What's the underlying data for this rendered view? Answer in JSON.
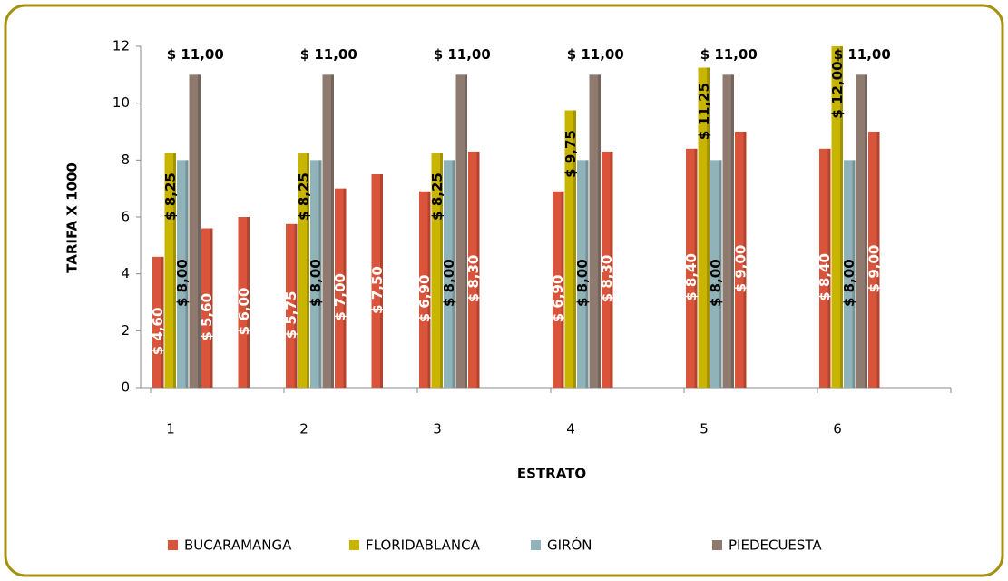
{
  "chart_data": {
    "type": "bar",
    "xlabel": "ESTRATO",
    "ylabel": "TARIFA X 1000",
    "categories": [
      "1",
      "2",
      "3",
      "4",
      "5",
      "6"
    ],
    "ylim": [
      0,
      12
    ],
    "yticks": [
      0,
      2,
      4,
      6,
      8,
      10,
      12
    ],
    "legend": "bottom",
    "series": [
      {
        "name": "BUCARAMANGA",
        "color": "#d9543a",
        "values": [
          4.6,
          5.75,
          6.9,
          6.9,
          8.4,
          8.4
        ],
        "value_labels": [
          "$ 4,60",
          "$ 5,75",
          "$ 6,90",
          "$ 6,90",
          "$ 8,40",
          "$ 8,40"
        ]
      },
      {
        "name": "FLORIDABLANCA",
        "color": "#c9b400",
        "values": [
          8.25,
          8.25,
          8.25,
          9.75,
          11.25,
          12.0
        ],
        "value_labels": [
          "$ 8,25",
          "$ 8,25",
          "$ 8,25",
          "$ 9,75",
          "$ 11,25",
          "$ 12,00"
        ]
      },
      {
        "name": "GIRÓN",
        "color": "#8fb3b8",
        "values": [
          8,
          8,
          8,
          8,
          8,
          8
        ],
        "value_labels": [
          "$ 8,00",
          "$ 8,00",
          "$ 8,00",
          "$ 8,00",
          "$ 8,00",
          "$ 8,00"
        ]
      },
      {
        "name": "PIEDECUESTA",
        "color": "#8f7a70",
        "values": [
          11,
          11,
          11,
          11,
          11,
          11
        ],
        "value_labels": [
          "$ 11,00",
          "$ 11,00",
          "$ 11,00",
          "$ 11,00",
          "$ 11,00",
          "$ 11,00"
        ]
      },
      {
        "color": "#d9543a",
        "values": [
          5.6,
          7.0,
          8.3,
          8.3,
          9.0,
          9.0
        ],
        "value_labels": [
          "$ 5,60",
          "$ 7,00",
          "$ 8,30",
          "$ 8,30",
          "$ 9,00",
          "$ 9,00"
        ]
      },
      {
        "color": "#d9543a",
        "values": [
          6.0,
          7.5,
          null,
          null,
          null,
          null
        ],
        "value_labels": [
          "$ 6,00",
          "$ 7,50",
          null,
          null,
          null,
          null
        ]
      }
    ]
  }
}
